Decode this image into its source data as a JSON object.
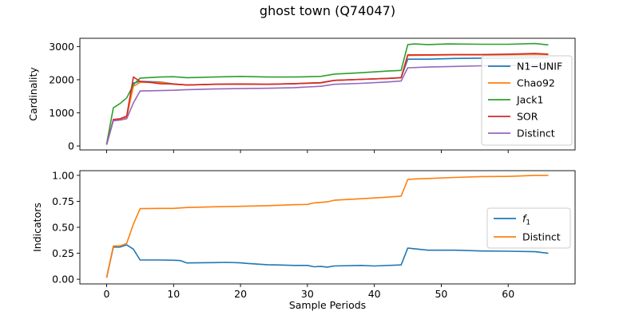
{
  "figure": {
    "title": "ghost town (Q74047)"
  },
  "chart_data": [
    {
      "type": "line",
      "ylabel": "Cardinality",
      "xlabel": "",
      "xlim": [
        -4,
        70
      ],
      "ylim": [
        -120,
        3250
      ],
      "xticks": [
        0,
        10,
        20,
        30,
        40,
        50,
        60
      ],
      "yticks": [
        0,
        1000,
        2000,
        3000
      ],
      "show_xtick_labels": false,
      "legend": "center-right",
      "series": [
        {
          "name": "N1−UNIF",
          "color": "#1f77b4",
          "x": [
            0,
            1,
            2,
            3,
            4,
            5,
            8,
            10,
            12,
            16,
            20,
            24,
            28,
            32,
            34,
            38,
            42,
            44,
            45,
            48,
            52,
            56,
            60,
            64,
            66
          ],
          "y": [
            40,
            780,
            800,
            870,
            1900,
            1950,
            1930,
            1870,
            1840,
            1860,
            1870,
            1860,
            1880,
            1910,
            1980,
            2010,
            2040,
            2060,
            2620,
            2620,
            2640,
            2650,
            2650,
            2660,
            2660
          ]
        },
        {
          "name": "Chao92",
          "color": "#ff7f0e",
          "x": [
            0,
            1,
            2,
            3,
            4,
            5,
            8,
            10,
            12,
            16,
            20,
            24,
            28,
            32,
            34,
            38,
            42,
            44,
            45,
            48,
            52,
            56,
            60,
            64,
            66
          ],
          "y": [
            40,
            780,
            800,
            860,
            1800,
            1920,
            1920,
            1860,
            1840,
            1860,
            1860,
            1860,
            1880,
            1900,
            1980,
            2010,
            2040,
            2060,
            2730,
            2740,
            2750,
            2750,
            2760,
            2770,
            2760
          ]
        },
        {
          "name": "Jack1",
          "color": "#2ca02c",
          "x": [
            0,
            1,
            2,
            3,
            4,
            5,
            8,
            10,
            12,
            16,
            20,
            24,
            28,
            32,
            34,
            38,
            42,
            44,
            45,
            46,
            48,
            51,
            56,
            60,
            64,
            66
          ],
          "y": [
            60,
            1150,
            1280,
            1450,
            1850,
            2050,
            2080,
            2090,
            2060,
            2080,
            2100,
            2080,
            2080,
            2100,
            2170,
            2210,
            2260,
            2280,
            3060,
            3080,
            3060,
            3080,
            3070,
            3070,
            3090,
            3050
          ]
        },
        {
          "name": "SOR",
          "color": "#d62728",
          "x": [
            0,
            1,
            2,
            3,
            4,
            5,
            6,
            8,
            10,
            12,
            16,
            20,
            24,
            28,
            32,
            34,
            38,
            42,
            44,
            45,
            48,
            52,
            56,
            60,
            64,
            66
          ],
          "y": [
            40,
            800,
            820,
            900,
            2080,
            1950,
            1930,
            1880,
            1870,
            1840,
            1860,
            1870,
            1860,
            1880,
            1910,
            1980,
            2010,
            2040,
            2060,
            2750,
            2750,
            2760,
            2760,
            2770,
            2790,
            2770
          ]
        },
        {
          "name": "Distinct",
          "color": "#9467bd",
          "x": [
            0,
            1,
            2,
            3,
            4,
            5,
            8,
            10,
            12,
            16,
            20,
            24,
            28,
            32,
            34,
            38,
            42,
            44,
            45,
            48,
            52,
            56,
            60,
            64,
            66
          ],
          "y": [
            40,
            760,
            780,
            820,
            1300,
            1660,
            1670,
            1680,
            1700,
            1720,
            1730,
            1740,
            1760,
            1800,
            1860,
            1890,
            1930,
            1960,
            2360,
            2380,
            2400,
            2420,
            2430,
            2440,
            2440
          ]
        }
      ]
    },
    {
      "type": "line",
      "ylabel": "Indicators",
      "xlabel": "Sample Periods",
      "xlim": [
        -4,
        70
      ],
      "ylim": [
        -0.045,
        1.045
      ],
      "xticks": [
        0,
        10,
        20,
        30,
        40,
        50,
        60
      ],
      "yticks": [
        0.0,
        0.25,
        0.5,
        0.75,
        1.0
      ],
      "ytick_labels": [
        "0.00",
        "0.25",
        "0.50",
        "0.75",
        "1.00"
      ],
      "show_xtick_labels": true,
      "legend": "center-right",
      "series": [
        {
          "name": "f1",
          "color": "#1f77b4",
          "x": [
            0,
            1,
            2,
            3,
            4,
            5,
            8,
            10,
            11,
            12,
            16,
            18,
            20,
            21,
            24,
            26,
            28,
            30,
            31,
            32,
            33,
            34,
            38,
            40,
            44,
            45,
            48,
            52,
            56,
            60,
            64,
            66
          ],
          "y": [
            0.015,
            0.31,
            0.31,
            0.33,
            0.29,
            0.185,
            0.185,
            0.183,
            0.18,
            0.157,
            0.16,
            0.162,
            0.158,
            0.152,
            0.14,
            0.137,
            0.133,
            0.133,
            0.12,
            0.123,
            0.117,
            0.128,
            0.133,
            0.128,
            0.138,
            0.3,
            0.28,
            0.28,
            0.272,
            0.27,
            0.265,
            0.25
          ]
        },
        {
          "name": "Distinct",
          "color": "#ff7f0e",
          "x": [
            0,
            1,
            2,
            3,
            4,
            5,
            8,
            10,
            12,
            16,
            20,
            24,
            28,
            30,
            31,
            33,
            34,
            38,
            42,
            44,
            45,
            46,
            48,
            52,
            56,
            60,
            64,
            66
          ],
          "y": [
            0.015,
            0.32,
            0.32,
            0.345,
            0.53,
            0.68,
            0.682,
            0.682,
            0.69,
            0.697,
            0.702,
            0.708,
            0.717,
            0.72,
            0.735,
            0.745,
            0.76,
            0.775,
            0.79,
            0.8,
            0.96,
            0.965,
            0.97,
            0.98,
            0.988,
            0.99,
            1.0,
            1.0
          ]
        }
      ]
    }
  ]
}
